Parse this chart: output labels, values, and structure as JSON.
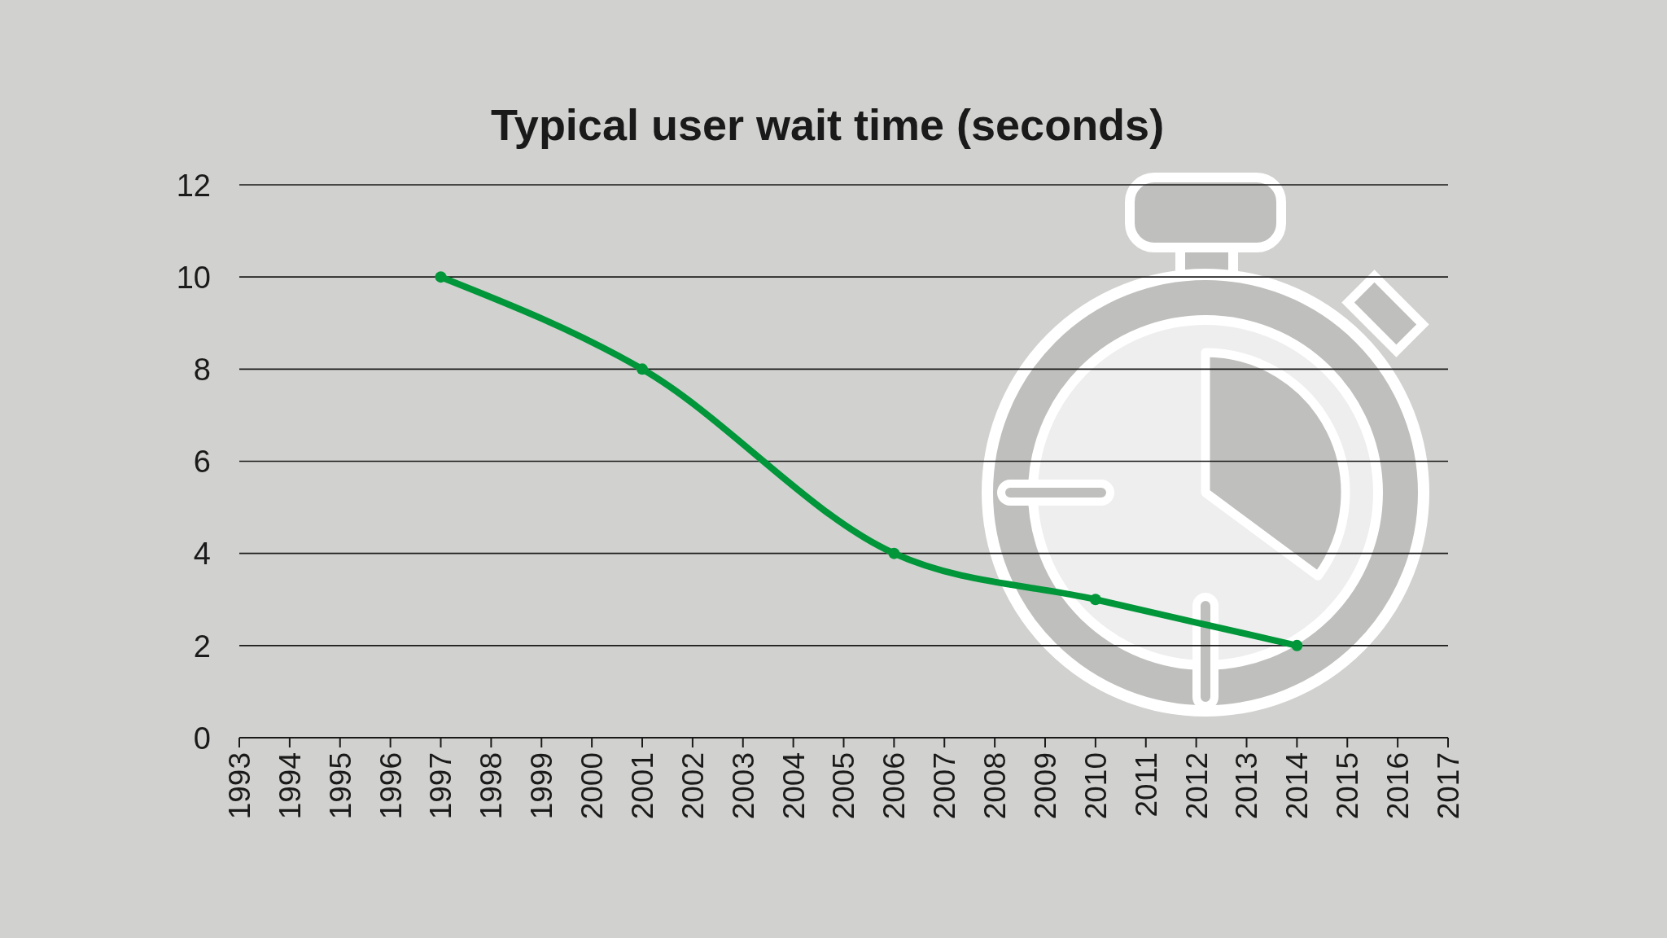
{
  "chart_data": {
    "type": "line",
    "title": "Typical user wait time (seconds)",
    "x": [
      1997,
      2001,
      2006,
      2010,
      2014
    ],
    "values": [
      10,
      8,
      4,
      3,
      2
    ],
    "color": "#009639",
    "xlim": [
      1993,
      2017
    ],
    "xticks": [
      1993,
      1994,
      1995,
      1996,
      1997,
      1998,
      1999,
      2000,
      2001,
      2002,
      2003,
      2004,
      2005,
      2006,
      2007,
      2008,
      2009,
      2010,
      2011,
      2012,
      2013,
      2014,
      2015,
      2016,
      2017
    ],
    "ylim": [
      0,
      12
    ],
    "yticks": [
      0,
      2,
      4,
      6,
      8,
      10,
      12
    ],
    "grid": "y",
    "marker": "circle"
  }
}
